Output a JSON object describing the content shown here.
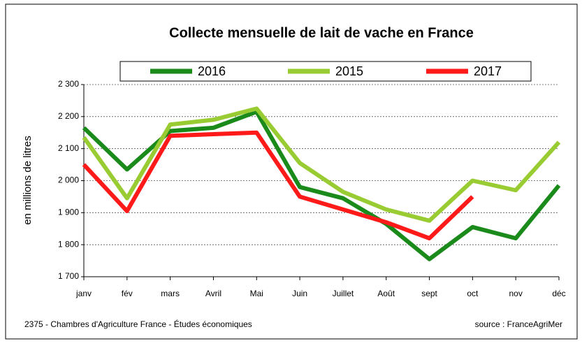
{
  "chart_data": {
    "type": "line",
    "title": "Collecte mensuelle de lait de vache en France",
    "y_label": "en millions de litres",
    "footer_left": "2375 - Chambres d'Agriculture France - Études économiques",
    "footer_right": "source : FranceAgriMer",
    "categories": [
      "janv",
      "fév",
      "mars",
      "Avril",
      "Mai",
      "Juin",
      "Juillet",
      "Août",
      "sept",
      "oct",
      "nov",
      "déc"
    ],
    "series": [
      {
        "name": "2016",
        "color": "#1a8a1a",
        "values": [
          2165,
          2035,
          2155,
          2165,
          2215,
          1980,
          1945,
          1865,
          1755,
          1855,
          1820,
          1985
        ]
      },
      {
        "name": "2015",
        "color": "#99cc33",
        "values": [
          2135,
          1945,
          2175,
          2190,
          2225,
          2055,
          1965,
          1910,
          1875,
          2000,
          1970,
          2120
        ]
      },
      {
        "name": "2017",
        "color": "#ff1a1a",
        "values": [
          2050,
          1905,
          2140,
          2145,
          2150,
          1950,
          1910,
          1870,
          1820,
          1950,
          null,
          null
        ]
      }
    ],
    "ylim": [
      1700,
      2300
    ],
    "yticks": [
      {
        "value": 1700,
        "label": "1 700"
      },
      {
        "value": 1800,
        "label": "1 800"
      },
      {
        "value": 1900,
        "label": "1 900"
      },
      {
        "value": 2000,
        "label": "2 000"
      },
      {
        "value": 2100,
        "label": "2 100"
      },
      {
        "value": 2200,
        "label": "2 200"
      },
      {
        "value": 2300,
        "label": "2 300"
      }
    ],
    "grid": true
  }
}
